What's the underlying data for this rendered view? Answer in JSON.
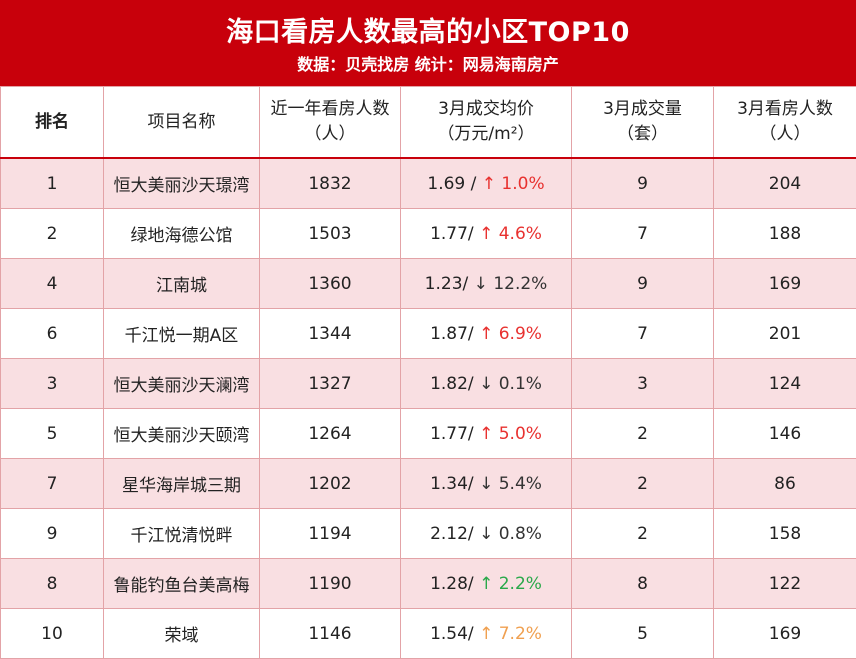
{
  "header": {
    "title": "海口看房人数最高的小区TOP10",
    "subtitle": "数据：贝壳找房  统计：网易海南房产"
  },
  "colors": {
    "banner": "#c8000b",
    "row_alt": "#f9dfe2",
    "up_red": "#e8312f",
    "down": "#333333",
    "up_green": "#2aa84a",
    "up_orange": "#f0a050"
  },
  "columns": [
    {
      "line1": "排名",
      "line2": ""
    },
    {
      "line1": "项目名称",
      "line2": ""
    },
    {
      "line1": "近一年看房人数",
      "line2": "（人）"
    },
    {
      "line1": "3月成交均价",
      "line2": "（万元/m²）"
    },
    {
      "line1": "3月成交量",
      "line2": "（套）"
    },
    {
      "line1": "3月看房人数",
      "line2": "（人）"
    }
  ],
  "rows": [
    {
      "rank": "1",
      "name": "恒大美丽沙天璟湾",
      "views_year": "1832",
      "price": "1.69 /",
      "arrow": "↑",
      "change": "1.0%",
      "trend": "up-red",
      "volume": "9",
      "views_march": "204"
    },
    {
      "rank": "2",
      "name": "绿地海德公馆",
      "views_year": "1503",
      "price": "1.77/",
      "arrow": "↑",
      "change": "4.6%",
      "trend": "up-red",
      "volume": "7",
      "views_march": "188"
    },
    {
      "rank": "4",
      "name": "江南城",
      "views_year": "1360",
      "price": "1.23/",
      "arrow": "↓",
      "change": "12.2%",
      "trend": "down-dark",
      "volume": "9",
      "views_march": "169"
    },
    {
      "rank": "6",
      "name": "千江悦一期A区",
      "views_year": "1344",
      "price": "1.87/",
      "arrow": "↑",
      "change": "6.9%",
      "trend": "up-red",
      "volume": "7",
      "views_march": "201"
    },
    {
      "rank": "3",
      "name": "恒大美丽沙天澜湾",
      "views_year": "1327",
      "price": "1.82/",
      "arrow": "↓",
      "change": "0.1%",
      "trend": "down-dark",
      "volume": "3",
      "views_march": "124"
    },
    {
      "rank": "5",
      "name": "恒大美丽沙天颐湾",
      "views_year": "1264",
      "price": "1.77/",
      "arrow": "↑",
      "change": "5.0%",
      "trend": "up-red",
      "volume": "2",
      "views_march": "146"
    },
    {
      "rank": "7",
      "name": "星华海岸城三期",
      "views_year": "1202",
      "price": "1.34/",
      "arrow": "↓",
      "change": "5.4%",
      "trend": "down-dark",
      "volume": "2",
      "views_march": "86"
    },
    {
      "rank": "9",
      "name": "千江悦清悦畔",
      "views_year": "1194",
      "price": "2.12/",
      "arrow": "↓",
      "change": "0.8%",
      "trend": "down-dark",
      "volume": "2",
      "views_march": "158"
    },
    {
      "rank": "8",
      "name": "鲁能钓鱼台美高梅",
      "views_year": "1190",
      "price": "1.28/",
      "arrow": "↑",
      "change": "2.2%",
      "trend": "up-green",
      "volume": "8",
      "views_march": "122"
    },
    {
      "rank": "10",
      "name": "荣域",
      "views_year": "1146",
      "price": "1.54/",
      "arrow": "↑",
      "change": "7.2%",
      "trend": "up-orange",
      "volume": "5",
      "views_march": "169"
    }
  ]
}
